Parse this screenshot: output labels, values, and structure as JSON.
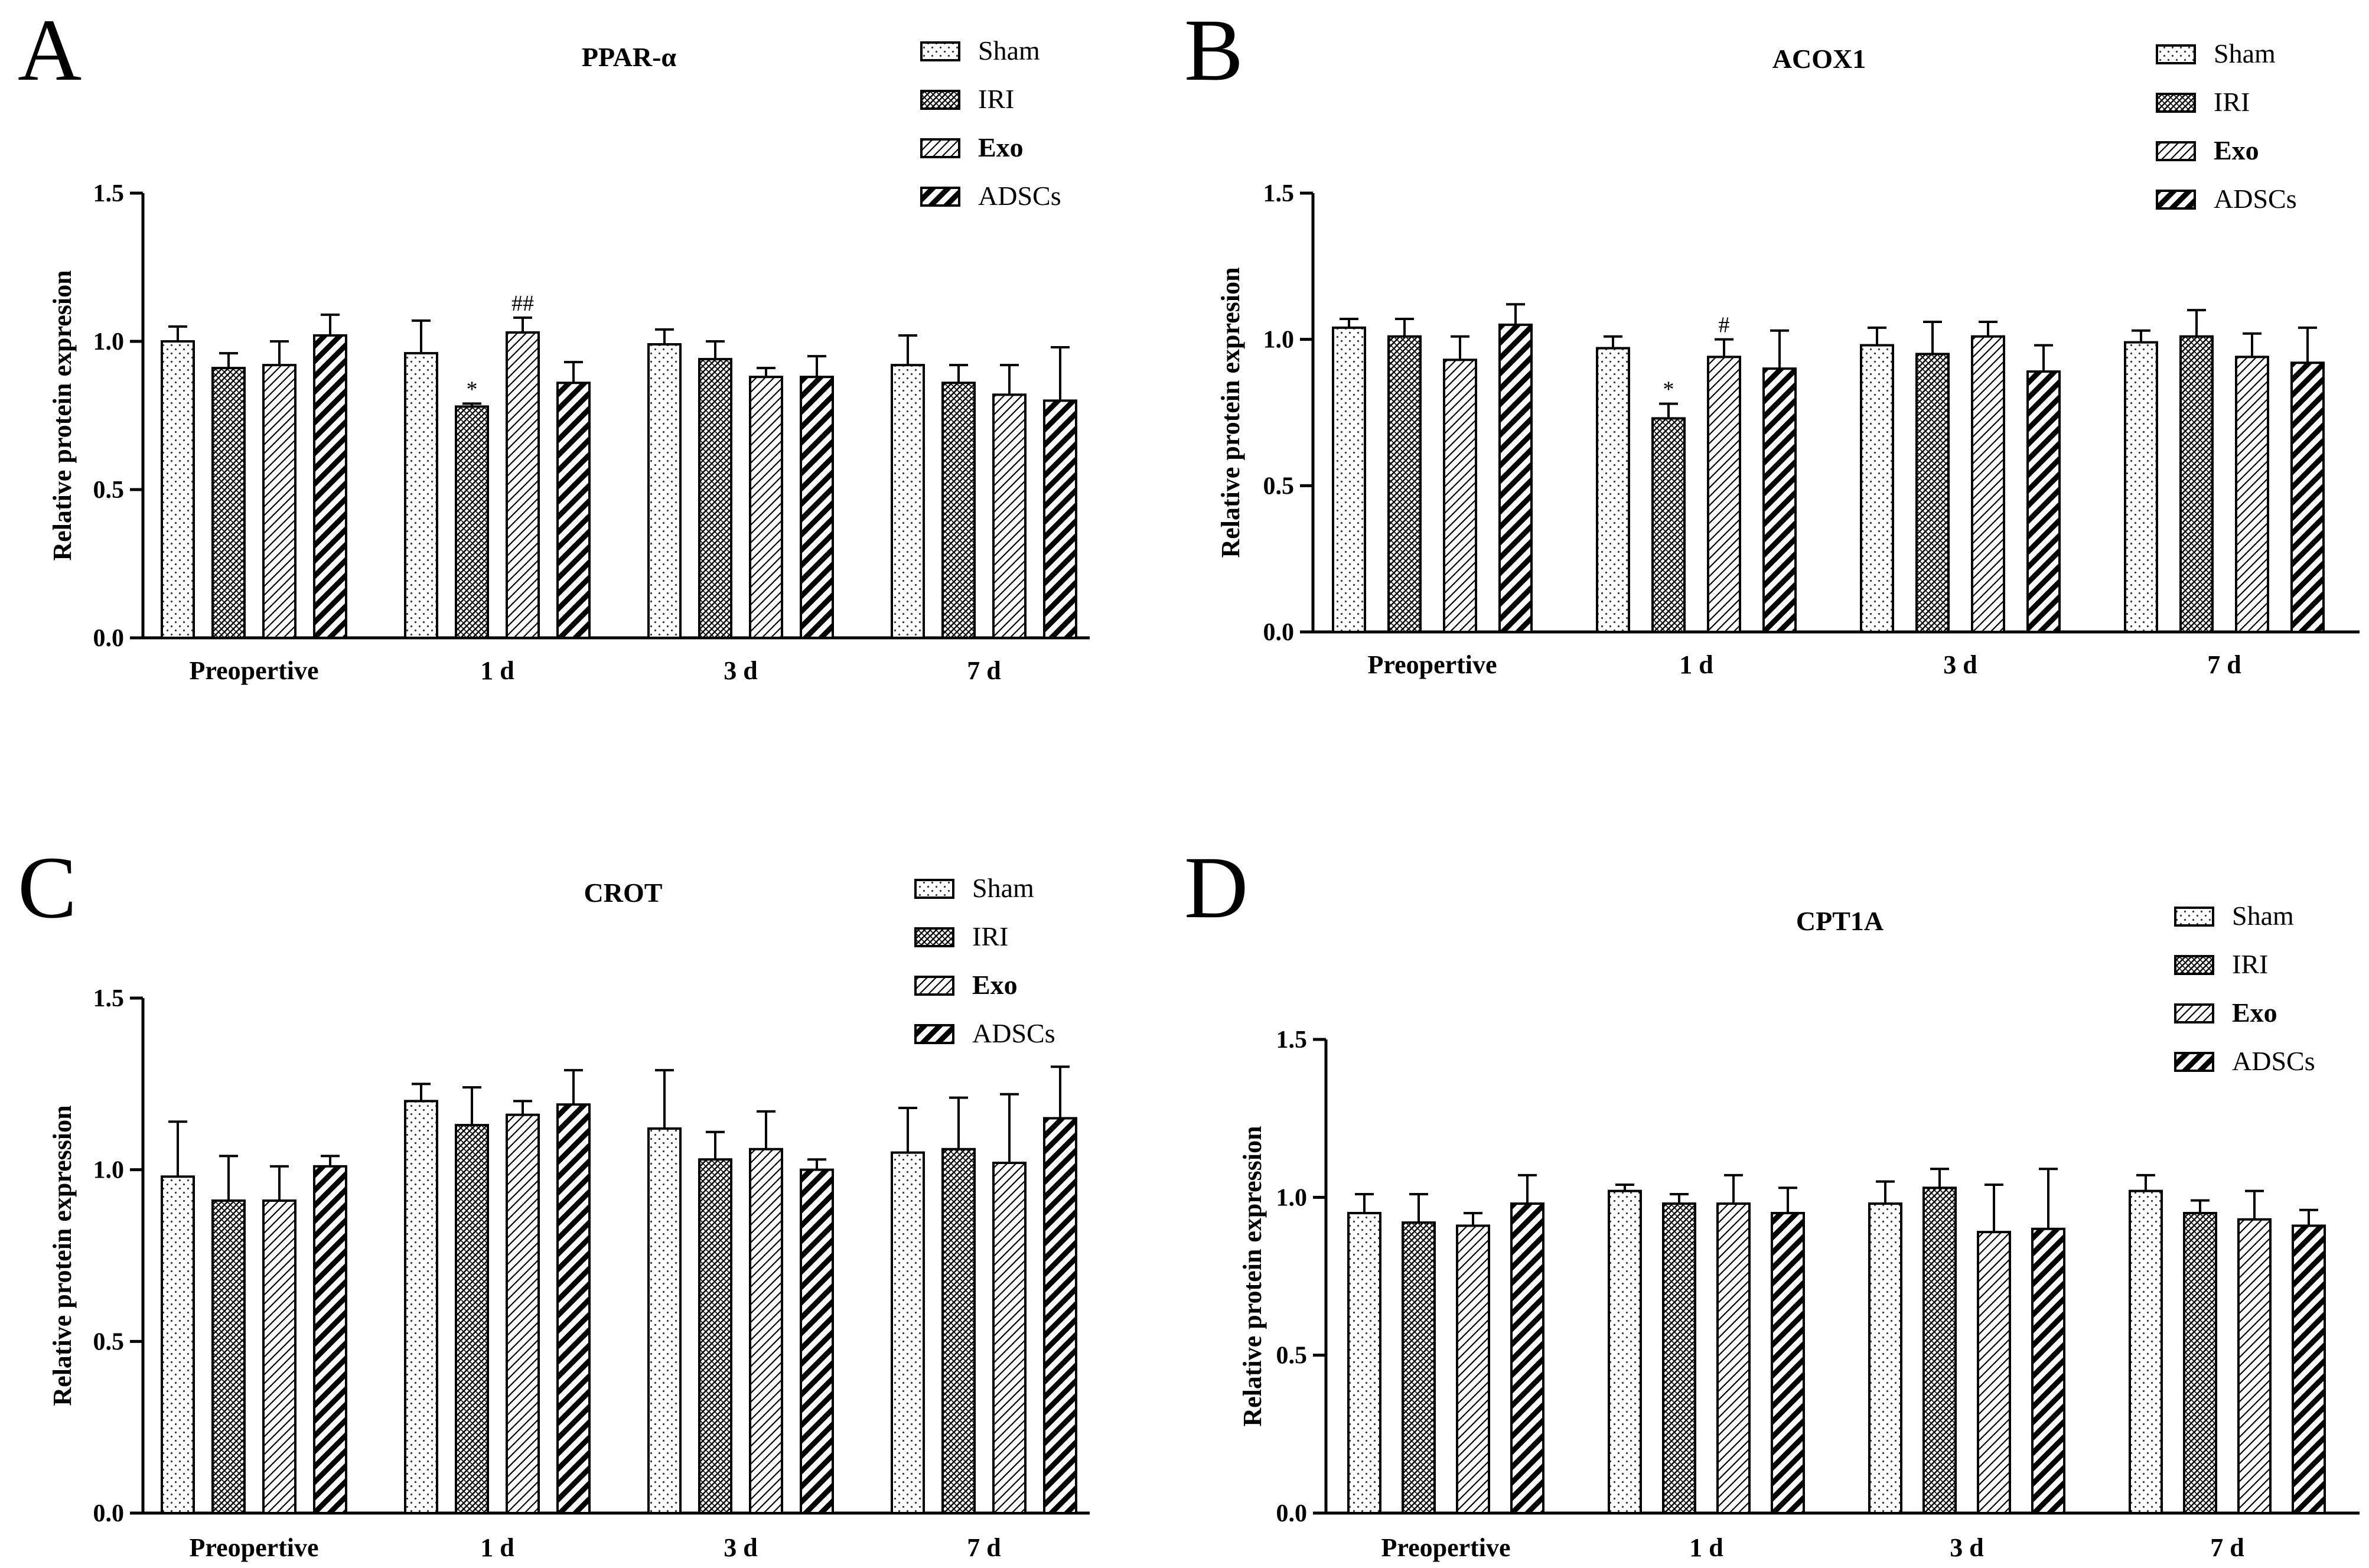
{
  "legend": [
    "Sham",
    "IRI",
    "Exo",
    "ADSCs"
  ],
  "categories": [
    "Preopertive",
    "1 d",
    "3 d",
    "7 d"
  ],
  "chart_data": [
    {
      "panel": "A",
      "type": "bar",
      "title": "PPAR-α",
      "xlabel": "",
      "ylabel": "Relative protein expresion",
      "ylim": [
        0,
        1.5
      ],
      "yticks": [
        "0.0",
        "0.5",
        "1.0",
        "1.5"
      ],
      "categories": [
        "Preopertive",
        "1 d",
        "3 d",
        "7 d"
      ],
      "legend_position": "top-right",
      "series": [
        {
          "name": "Sham",
          "values": [
            1.0,
            0.96,
            0.99,
            0.92
          ],
          "errors": [
            0.05,
            0.11,
            0.05,
            0.1
          ]
        },
        {
          "name": "IRI",
          "values": [
            0.91,
            0.78,
            0.94,
            0.86
          ],
          "errors": [
            0.05,
            0.01,
            0.06,
            0.06
          ]
        },
        {
          "name": "Exo",
          "values": [
            0.92,
            1.03,
            0.88,
            0.82
          ],
          "errors": [
            0.08,
            0.05,
            0.03,
            0.1
          ]
        },
        {
          "name": "ADSCs",
          "values": [
            1.02,
            0.86,
            0.88,
            0.8
          ],
          "errors": [
            0.07,
            0.07,
            0.07,
            0.18
          ]
        }
      ],
      "annotations": [
        {
          "text": "*",
          "category": "1 d",
          "series": "IRI"
        },
        {
          "text": "##",
          "category": "1 d",
          "series": "Exo"
        }
      ]
    },
    {
      "panel": "B",
      "type": "bar",
      "title": "ACOX1",
      "xlabel": "",
      "ylabel": "Relative protein expresion",
      "ylim": [
        0,
        1.5
      ],
      "yticks": [
        "0.0",
        "0.5",
        "1.0",
        "1.5"
      ],
      "categories": [
        "Preopertive",
        "1 d",
        "3 d",
        "7 d"
      ],
      "legend_position": "top-right",
      "series": [
        {
          "name": "Sham",
          "values": [
            1.04,
            0.97,
            0.98,
            0.99
          ],
          "errors": [
            0.03,
            0.04,
            0.06,
            0.04
          ]
        },
        {
          "name": "IRI",
          "values": [
            1.01,
            0.73,
            0.95,
            1.01
          ],
          "errors": [
            0.06,
            0.05,
            0.11,
            0.09
          ]
        },
        {
          "name": "Exo",
          "values": [
            0.93,
            0.94,
            1.01,
            0.94
          ],
          "errors": [
            0.08,
            0.06,
            0.05,
            0.08
          ]
        },
        {
          "name": "ADSCs",
          "values": [
            1.05,
            0.9,
            0.89,
            0.92
          ],
          "errors": [
            0.07,
            0.13,
            0.09,
            0.12
          ]
        }
      ],
      "annotations": [
        {
          "text": "*",
          "category": "1 d",
          "series": "IRI"
        },
        {
          "text": "#",
          "category": "1 d",
          "series": "Exo"
        }
      ]
    },
    {
      "panel": "C",
      "type": "bar",
      "title": "CROT",
      "xlabel": "",
      "ylabel": "Relative protein expression",
      "ylim": [
        0,
        1.5
      ],
      "yticks": [
        "0.0",
        "0.5",
        "1.0",
        "1.5"
      ],
      "categories": [
        "Preopertive",
        "1 d",
        "3 d",
        "7 d"
      ],
      "legend_position": "top-right",
      "series": [
        {
          "name": "Sham",
          "values": [
            0.98,
            1.2,
            1.12,
            1.05
          ],
          "errors": [
            0.16,
            0.05,
            0.17,
            0.13
          ]
        },
        {
          "name": "IRI",
          "values": [
            0.91,
            1.13,
            1.03,
            1.06
          ],
          "errors": [
            0.13,
            0.11,
            0.08,
            0.15
          ]
        },
        {
          "name": "Exo",
          "values": [
            0.91,
            1.16,
            1.06,
            1.02
          ],
          "errors": [
            0.1,
            0.04,
            0.11,
            0.2
          ]
        },
        {
          "name": "ADSCs",
          "values": [
            1.01,
            1.19,
            1.0,
            1.15
          ],
          "errors": [
            0.03,
            0.1,
            0.03,
            0.15
          ]
        }
      ],
      "annotations": []
    },
    {
      "panel": "D",
      "type": "bar",
      "title": "CPT1A",
      "xlabel": "",
      "ylabel": "Relative protein expression",
      "ylim": [
        0,
        1.5
      ],
      "yticks": [
        "0.0",
        "0.5",
        "1.0",
        "1.5"
      ],
      "categories": [
        "Preopertive",
        "1 d",
        "3 d",
        "7 d"
      ],
      "legend_position": "top-right",
      "series": [
        {
          "name": "Sham",
          "values": [
            0.95,
            1.02,
            0.98,
            1.02
          ],
          "errors": [
            0.06,
            0.02,
            0.07,
            0.05
          ]
        },
        {
          "name": "IRI",
          "values": [
            0.92,
            0.98,
            1.03,
            0.95
          ],
          "errors": [
            0.09,
            0.03,
            0.06,
            0.04
          ]
        },
        {
          "name": "Exo",
          "values": [
            0.91,
            0.98,
            0.89,
            0.93
          ],
          "errors": [
            0.04,
            0.09,
            0.15,
            0.09
          ]
        },
        {
          "name": "ADSCs",
          "values": [
            0.98,
            0.95,
            0.9,
            0.91
          ],
          "errors": [
            0.09,
            0.08,
            0.19,
            0.05
          ]
        }
      ],
      "annotations": []
    }
  ]
}
